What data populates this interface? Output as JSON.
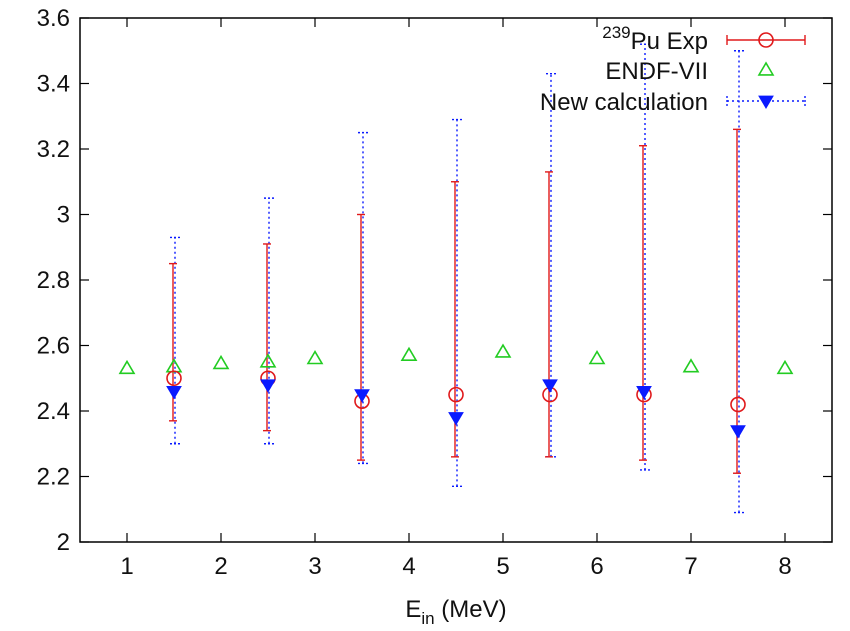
{
  "chart_data": {
    "type": "scatter",
    "title": "",
    "xlabel": {
      "main": "E",
      "sub": "in",
      "rest": " (MeV)"
    },
    "ylabel": "",
    "xlim": [
      0.5,
      8.5
    ],
    "ylim": [
      2.0,
      3.6
    ],
    "xticks": [
      1,
      2,
      3,
      4,
      5,
      6,
      7,
      8
    ],
    "yticks": [
      2,
      2.2,
      2.4,
      2.6,
      2.8,
      3,
      3.2,
      3.4,
      3.6
    ],
    "ytick_labels": [
      "2",
      "2.2",
      "2.4",
      "2.6",
      "2.8",
      "3",
      "3.2",
      "3.4",
      "3.6"
    ],
    "grid": false,
    "legend_position": "top-right",
    "series": [
      {
        "name_sup": "239",
        "name": "Pu Exp",
        "marker": "open-circle",
        "color": "#e0191b",
        "line_style": "solid",
        "x": [
          1.5,
          2.5,
          3.5,
          4.5,
          5.5,
          6.5,
          7.5
        ],
        "y": [
          2.5,
          2.5,
          2.43,
          2.45,
          2.45,
          2.45,
          2.42
        ],
        "y_low": [
          2.37,
          2.34,
          2.25,
          2.26,
          2.26,
          2.25,
          2.21
        ],
        "y_high": [
          2.85,
          2.91,
          3.0,
          3.1,
          3.13,
          3.21,
          3.26
        ]
      },
      {
        "name": "ENDF-VII",
        "marker": "open-triangle-up",
        "color": "#22cc22",
        "x": [
          1,
          1.5,
          2,
          2.5,
          3,
          4,
          5,
          6,
          7,
          8
        ],
        "y": [
          2.53,
          2.535,
          2.545,
          2.55,
          2.56,
          2.57,
          2.58,
          2.56,
          2.535,
          2.53
        ]
      },
      {
        "name": "New calculation",
        "marker": "filled-triangle-down",
        "color": "#0a1aff",
        "line_style": "dotted",
        "x": [
          1.5,
          2.5,
          3.5,
          4.5,
          5.5,
          6.5,
          7.5
        ],
        "y": [
          2.46,
          2.48,
          2.45,
          2.38,
          2.48,
          2.46,
          2.34
        ],
        "y_low": [
          2.3,
          2.3,
          2.24,
          2.17,
          2.26,
          2.22,
          2.09
        ],
        "y_high": [
          2.93,
          3.05,
          3.25,
          3.29,
          3.43,
          3.52,
          3.5
        ]
      }
    ]
  }
}
